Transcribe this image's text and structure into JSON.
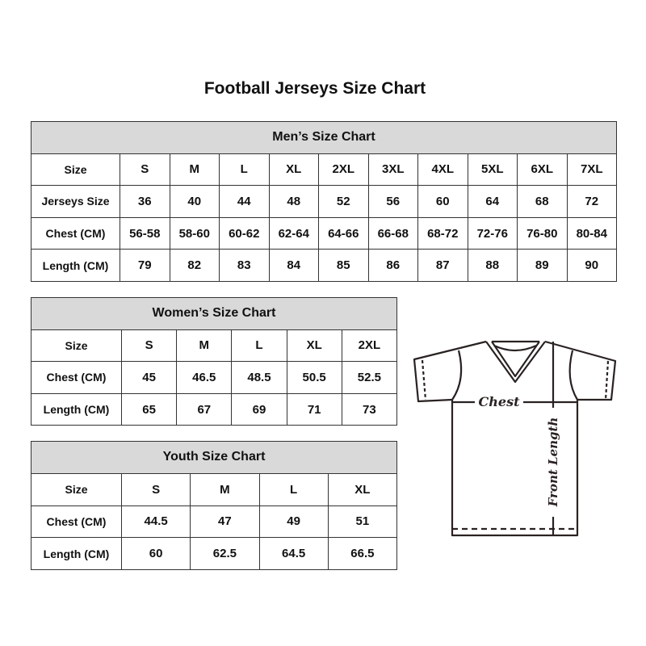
{
  "title": "Football Jerseys Size Chart",
  "men": {
    "heading": "Men’s Size Chart",
    "rows": [
      {
        "label": "Size",
        "values": [
          "S",
          "M",
          "L",
          "XL",
          "2XL",
          "3XL",
          "4XL",
          "5XL",
          "6XL",
          "7XL"
        ]
      },
      {
        "label": "Jerseys Size",
        "values": [
          "36",
          "40",
          "44",
          "48",
          "52",
          "56",
          "60",
          "64",
          "68",
          "72"
        ]
      },
      {
        "label": "Chest (CM)",
        "values": [
          "56-58",
          "58-60",
          "60-62",
          "62-64",
          "64-66",
          "66-68",
          "68-72",
          "72-76",
          "76-80",
          "80-84"
        ]
      },
      {
        "label": "Length (CM)",
        "values": [
          "79",
          "82",
          "83",
          "84",
          "85",
          "86",
          "87",
          "88",
          "89",
          "90"
        ]
      }
    ]
  },
  "women": {
    "heading": "Women’s Size Chart",
    "rows": [
      {
        "label": "Size",
        "values": [
          "S",
          "M",
          "L",
          "XL",
          "2XL"
        ]
      },
      {
        "label": "Chest (CM)",
        "values": [
          "45",
          "46.5",
          "48.5",
          "50.5",
          "52.5"
        ]
      },
      {
        "label": "Length (CM)",
        "values": [
          "65",
          "67",
          "69",
          "71",
          "73"
        ]
      }
    ]
  },
  "youth": {
    "heading": "Youth Size Chart",
    "rows": [
      {
        "label": "Size",
        "values": [
          "S",
          "M",
          "L",
          "XL"
        ]
      },
      {
        "label": "Chest (CM)",
        "values": [
          "44.5",
          "47",
          "49",
          "51"
        ]
      },
      {
        "label": "Length (CM)",
        "values": [
          "60",
          "62.5",
          "64.5",
          "66.5"
        ]
      }
    ]
  },
  "diagram": {
    "chest_label": "Chest",
    "length_label": "Front Length"
  },
  "colors": {
    "header_fill": "#d9d9d9",
    "border": "#333333"
  }
}
